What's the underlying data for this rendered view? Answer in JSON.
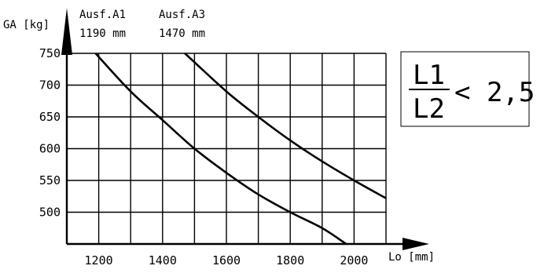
{
  "chart_data": {
    "type": "line",
    "ylabel": "GA [kg]",
    "xlabel": "Lo [mm]",
    "xlim": [
      1100,
      2100
    ],
    "ylim": [
      450,
      750
    ],
    "x_ticks": [
      1200,
      1400,
      1600,
      1800,
      2000
    ],
    "y_ticks": [
      500,
      550,
      600,
      650,
      700,
      750
    ],
    "x_tick_labels": [
      "1200",
      "1400",
      "1600",
      "1800",
      "2000"
    ],
    "y_tick_labels": [
      "500",
      "550",
      "600",
      "650",
      "700",
      "750"
    ],
    "grid": true,
    "series": [
      {
        "name": "Ausf.A1",
        "sublabel": "1190 mm",
        "x": [
          1190,
          1300,
          1400,
          1500,
          1600,
          1700,
          1800,
          1900,
          1975
        ],
        "y": [
          750,
          690,
          645,
          600,
          562,
          528,
          500,
          475,
          450
        ]
      },
      {
        "name": "Ausf.A3",
        "sublabel": "1470 mm",
        "x": [
          1470,
          1600,
          1700,
          1800,
          1900,
          2000,
          2100
        ],
        "y": [
          750,
          690,
          650,
          613,
          580,
          550,
          522
        ]
      }
    ],
    "annotation": {
      "numerator": "L1",
      "denominator": "L2",
      "relation": "< 2,5"
    }
  }
}
